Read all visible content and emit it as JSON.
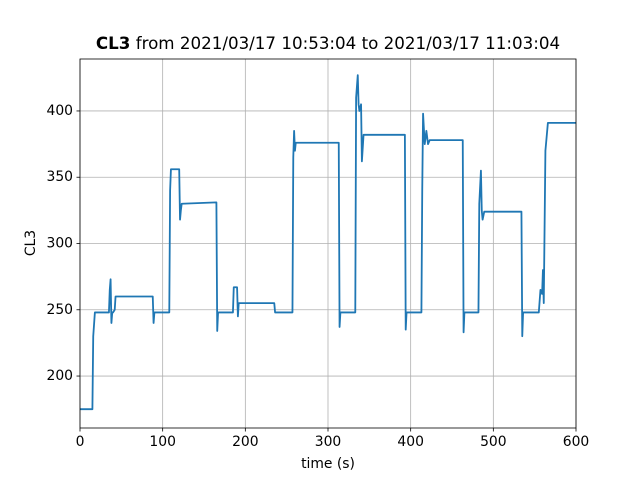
{
  "chart_data": {
    "type": "line",
    "title": {
      "bold": "CL3",
      "rest": "from 2021/03/17 10:53:04 to 2021/03/17 11:03:04"
    },
    "x_label": "time (s)",
    "y_label": "CL3",
    "xlim": [
      0,
      600
    ],
    "ylim": [
      160.8,
      439.2
    ],
    "xticks": [
      0,
      100,
      200,
      300,
      400,
      500,
      600
    ],
    "yticks": [
      200,
      250,
      300,
      350,
      400
    ],
    "grid": true,
    "series": [
      {
        "name": "CL3",
        "color": "#1f77b4",
        "x": [
          0,
          15,
          16,
          18,
          35,
          36,
          37,
          38,
          39,
          40,
          42,
          43,
          88,
          89,
          90,
          108,
          109,
          110,
          120,
          121,
          122,
          123,
          165,
          166,
          167,
          185,
          186,
          190,
          191,
          192,
          235,
          236,
          257,
          258,
          259,
          260,
          261,
          263,
          313,
          314,
          315,
          333,
          334,
          336,
          337,
          338,
          340,
          341,
          343,
          393,
          394,
          395,
          413,
          414,
          415,
          417,
          419,
          421,
          423,
          463,
          464,
          465,
          482,
          483,
          485,
          486,
          487,
          489,
          534,
          535,
          536,
          555,
          557,
          559,
          560,
          561,
          563,
          566,
          600
        ],
        "values": [
          175,
          175,
          230,
          248,
          248,
          265,
          273,
          240,
          248,
          248,
          250,
          260,
          260,
          240,
          248,
          248,
          340,
          356,
          356,
          318,
          325,
          330,
          331,
          234,
          248,
          248,
          267,
          267,
          245,
          255,
          255,
          248,
          248,
          365,
          385,
          370,
          376,
          376,
          376,
          237,
          248,
          248,
          410,
          427,
          405,
          400,
          405,
          362,
          382,
          382,
          235,
          248,
          248,
          340,
          398,
          375,
          385,
          375,
          378,
          378,
          233,
          248,
          248,
          330,
          355,
          325,
          318,
          324,
          324,
          230,
          248,
          248,
          265,
          262,
          280,
          255,
          370,
          391,
          391
        ]
      }
    ]
  }
}
